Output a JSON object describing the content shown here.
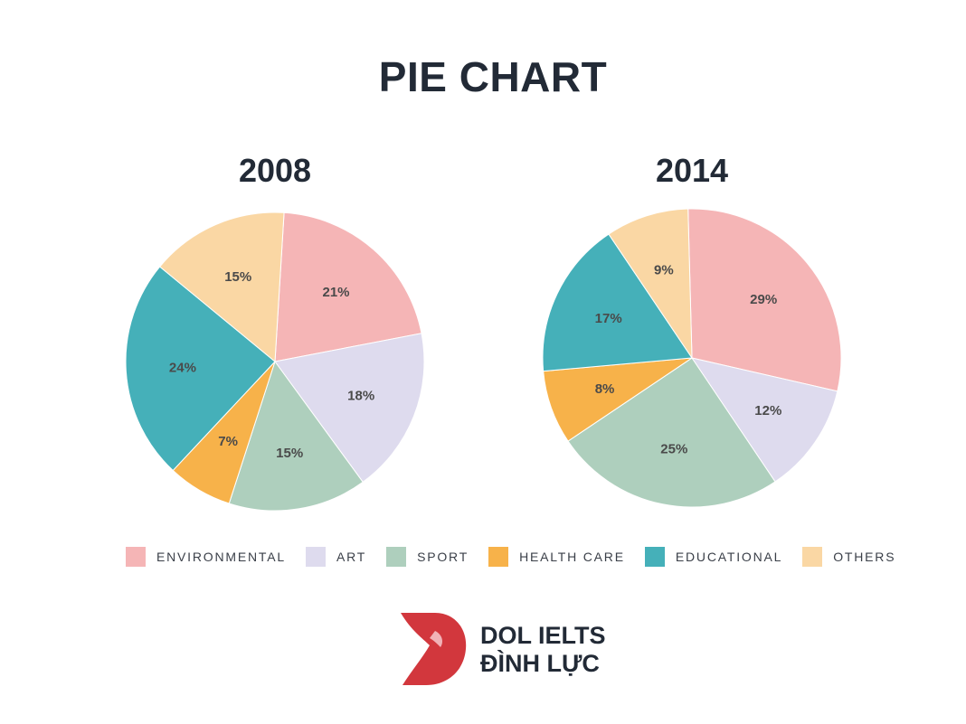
{
  "title": "PIE CHART",
  "legend": {
    "items": [
      {
        "label": "ENVIRONMENTAL",
        "color": "#f5b5b6"
      },
      {
        "label": "ART",
        "color": "#dedbee"
      },
      {
        "label": "SPORT",
        "color": "#aecfbd"
      },
      {
        "label": "HEALTH CARE",
        "color": "#f7b24a"
      },
      {
        "label": "EDUCATIONAL",
        "color": "#45b0b9"
      },
      {
        "label": "OTHERS",
        "color": "#fad7a4"
      }
    ]
  },
  "chart_data": [
    {
      "type": "pie",
      "title": "2008",
      "categories": [
        "ENVIRONMENTAL",
        "ART",
        "SPORT",
        "HEALTH CARE",
        "EDUCATIONAL",
        "OTHERS"
      ],
      "values": [
        21,
        18,
        15,
        7,
        24,
        15
      ],
      "labels": [
        "21%",
        "18%",
        "15%",
        "7%",
        "24%",
        "15%"
      ],
      "colors": [
        "#f5b5b6",
        "#dedbee",
        "#aecfbd",
        "#f7b24a",
        "#45b0b9",
        "#fad7a4"
      ]
    },
    {
      "type": "pie",
      "title": "2014",
      "categories": [
        "ENVIRONMENTAL",
        "ART",
        "SPORT",
        "HEALTH CARE",
        "EDUCATIONAL",
        "OTHERS"
      ],
      "values": [
        29,
        12,
        25,
        8,
        17,
        9
      ],
      "labels": [
        "29%",
        "12%",
        "25%",
        "8%",
        "17%",
        "9%"
      ],
      "colors": [
        "#f5b5b6",
        "#dedbee",
        "#aecfbd",
        "#f7b24a",
        "#45b0b9",
        "#fad7a4"
      ]
    }
  ],
  "logo": {
    "line1": "DOL IELTS",
    "line2": "ĐÌNH LỰC",
    "color": "#d2373d"
  }
}
